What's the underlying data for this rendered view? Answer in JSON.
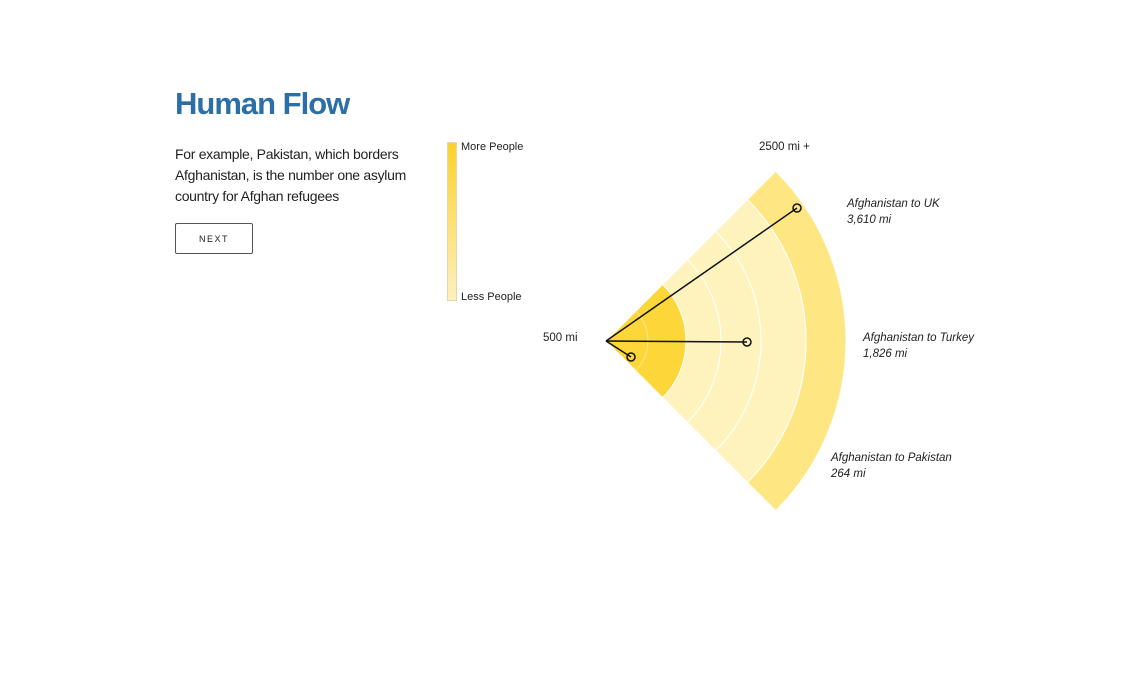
{
  "header": {
    "title": "Human Flow"
  },
  "intro": {
    "text": "For example, Pakistan, which borders Afghanistan, is the number one asylum country for Afghan refugees",
    "next_label": "NEXT"
  },
  "legend": {
    "more_label": "More People",
    "less_label": "Less People",
    "color_high": "#fdd12b",
    "color_low": "#fdf0bf"
  },
  "chart_data": {
    "type": "radial-distance",
    "origin": "Afghanistan",
    "axis_labels": {
      "inner": "500 mi",
      "outer": "2500 mi +"
    },
    "bands": [
      {
        "ring": 1,
        "intensity": "high"
      },
      {
        "ring": 2,
        "intensity": "low"
      },
      {
        "ring": 3,
        "intensity": "low"
      },
      {
        "ring": 4,
        "intensity": "low"
      },
      {
        "ring": 5,
        "intensity": "medium"
      }
    ],
    "colors": {
      "high": "#fdd63a",
      "medium": "#fee683",
      "low": "#fef2bd",
      "line": "#111111"
    },
    "routes": [
      {
        "label": "Afghanistan to UK",
        "distance_label": "3,610 mi",
        "distance": 3610
      },
      {
        "label": "Afghanistan to Turkey",
        "distance_label": "1,826 mi",
        "distance": 1826
      },
      {
        "label": "Afghanistan to Pakistan",
        "distance_label": "264 mi",
        "distance": 264
      }
    ]
  }
}
